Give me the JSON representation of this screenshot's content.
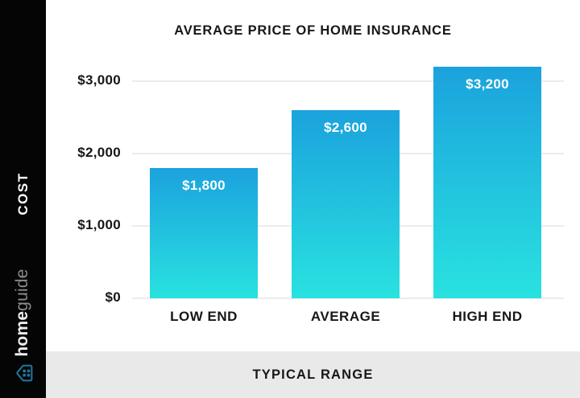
{
  "title": "AVERAGE PRICE OF HOME INSURANCE",
  "sidebar": {
    "axis_label": "COST",
    "brand_bold": "home",
    "brand_light": "guide",
    "logo_icon": "house-icon"
  },
  "footer": {
    "label": "TYPICAL RANGE"
  },
  "chart_data": {
    "type": "bar",
    "title": "AVERAGE PRICE OF HOME INSURANCE",
    "categories": [
      "LOW END",
      "AVERAGE",
      "HIGH END"
    ],
    "values": [
      1800,
      2600,
      3200
    ],
    "value_labels": [
      "$1,800",
      "$2,600",
      "$3,200"
    ],
    "yticks": [
      0,
      1000,
      2000,
      3000
    ],
    "ytick_labels": [
      "$0",
      "$1,000",
      "$2,000",
      "$3,000"
    ],
    "ylabel": "COST",
    "xlabel": "TYPICAL RANGE",
    "ylim": [
      0,
      3200
    ],
    "grid": true,
    "legend": "none",
    "bar_gradient_top": "#1ba2dd",
    "bar_gradient_bottom": "#29e2e0"
  },
  "colors": {
    "sidebar_bg": "#050505",
    "footer_bg": "#e9e9e9",
    "gridline": "#ececec",
    "text_dark": "#171717",
    "bar_label_text": "#ffffff",
    "brand_bold": "#ededed",
    "brand_light": "#8d8d8d",
    "logo_teal": "#1f749a"
  }
}
